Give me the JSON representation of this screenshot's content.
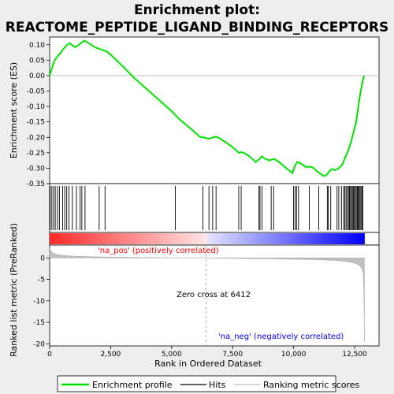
{
  "chart_data": {
    "type": "line",
    "title_line1": "Enrichment plot:",
    "title_line2": "REACTOME_PEPTIDE_LIGAND_BINDING_RECEPTORS",
    "top_panel": {
      "ylabel": "Enrichment score (ES)",
      "ylim": [
        -0.35,
        0.125
      ],
      "yticks": [
        0.1,
        0.05,
        0.0,
        -0.05,
        -0.1,
        -0.15,
        -0.2,
        -0.25,
        -0.3,
        -0.35
      ],
      "ytick_labels": [
        "0.10",
        "0.05",
        "0.00",
        "-0.05",
        "-0.10",
        "-0.15",
        "-0.20",
        "-0.25",
        "-0.30",
        "-0.35"
      ],
      "series": [
        {
          "name": "Enrichment profile",
          "color": "#00e000",
          "x": [
            0,
            60,
            120,
            180,
            250,
            320,
            400,
            470,
            540,
            610,
            690,
            760,
            830,
            900,
            980,
            1050,
            1120,
            1200,
            1280,
            1350,
            1420,
            1500,
            1600,
            1700,
            1800,
            1900,
            2000,
            2100,
            2200,
            2300,
            2500,
            3000,
            3500,
            4000,
            4500,
            5000,
            5150,
            5300,
            5600,
            5900,
            6150,
            6300,
            6400,
            6500,
            6600,
            6700,
            6800,
            6900,
            7200,
            7500,
            7750,
            7850,
            7950,
            8200,
            8450,
            8600,
            8700,
            8800,
            9000,
            9100,
            9200,
            9400,
            9700,
            9950,
            10050,
            10150,
            10300,
            10500,
            10650,
            10800,
            10950,
            11100,
            11250,
            11350,
            11450,
            11550,
            11700,
            11800,
            11900,
            12000,
            12050,
            12100,
            12150,
            12200,
            12250,
            12300,
            12350,
            12400,
            12450,
            12500,
            12550,
            12600,
            12650,
            12700,
            12750,
            12800,
            12850,
            12900
          ],
          "y": [
            0.0,
            0.015,
            0.03,
            0.045,
            0.055,
            0.062,
            0.07,
            0.075,
            0.085,
            0.09,
            0.098,
            0.102,
            0.105,
            0.1,
            0.095,
            0.092,
            0.096,
            0.1,
            0.105,
            0.11,
            0.113,
            0.11,
            0.105,
            0.1,
            0.095,
            0.09,
            0.088,
            0.085,
            0.082,
            0.08,
            0.068,
            0.03,
            -0.01,
            -0.045,
            -0.08,
            -0.115,
            -0.128,
            -0.14,
            -0.16,
            -0.18,
            -0.198,
            -0.2,
            -0.202,
            -0.205,
            -0.203,
            -0.2,
            -0.198,
            -0.2,
            -0.215,
            -0.232,
            -0.25,
            -0.248,
            -0.25,
            -0.262,
            -0.28,
            -0.27,
            -0.262,
            -0.268,
            -0.275,
            -0.272,
            -0.27,
            -0.28,
            -0.3,
            -0.316,
            -0.292,
            -0.28,
            -0.285,
            -0.296,
            -0.295,
            -0.298,
            -0.31,
            -0.318,
            -0.326,
            -0.322,
            -0.312,
            -0.303,
            -0.306,
            -0.303,
            -0.296,
            -0.288,
            -0.278,
            -0.268,
            -0.258,
            -0.25,
            -0.24,
            -0.228,
            -0.216,
            -0.2,
            -0.185,
            -0.17,
            -0.155,
            -0.13,
            -0.1,
            -0.075,
            -0.05,
            -0.03,
            -0.01,
            0.0
          ]
        }
      ],
      "hits": [
        20,
        90,
        160,
        230,
        320,
        400,
        530,
        620,
        700,
        790,
        930,
        1100,
        1250,
        1320,
        1450,
        2030,
        2270,
        5150,
        6280,
        6530,
        6680,
        6820,
        7750,
        7850,
        8580,
        8620,
        8700,
        9080,
        9180,
        10000,
        10060,
        10120,
        10200,
        10640,
        11030,
        11380,
        11420,
        11520,
        11780,
        11850,
        11960,
        12050,
        12100,
        12150,
        12200,
        12250,
        12290,
        12330,
        12370,
        12410,
        12450,
        12490,
        12530,
        12570,
        12610,
        12650,
        12680,
        12720,
        12760,
        12800,
        12840
      ]
    },
    "ranked_panel": {
      "ylabel": "Ranked list metric (PreRanked)",
      "ylim": [
        -20.5,
        3
      ],
      "yticks": [
        0,
        -5,
        -10,
        -15,
        -20
      ],
      "ytick_labels": [
        "0",
        "-5",
        "-10",
        "-15",
        "-20"
      ],
      "xlabel": "Rank in Ordered Dataset",
      "xlim": [
        0,
        13500
      ],
      "xticks": [
        0,
        2500,
        5000,
        7500,
        10000,
        12500
      ],
      "xtick_labels": [
        "0",
        "2,500",
        "5,000",
        "7,500",
        "10,000",
        "12,500"
      ],
      "metric_x": [
        0,
        50,
        150,
        300,
        600,
        1000,
        2000,
        3000,
        4000,
        5000,
        6000,
        6412,
        7000,
        8000,
        9000,
        10000,
        11000,
        11800,
        12200,
        12500,
        12700,
        12800,
        12850,
        12880,
        12900
      ],
      "metric_y": [
        2.4,
        1.6,
        1.1,
        0.8,
        0.55,
        0.4,
        0.25,
        0.15,
        0.08,
        0.04,
        0.01,
        0.0,
        -0.05,
        -0.12,
        -0.2,
        -0.3,
        -0.42,
        -0.6,
        -0.85,
        -1.2,
        -1.7,
        -2.5,
        -3.5,
        -8.0,
        -19.5
      ],
      "zero_cross_rank": 6412,
      "zero_cross_label": "Zero cross at 6412",
      "pos_label": "'na_pos' (positively correlated)",
      "neg_label": "'na_neg' (negatively correlated)",
      "pos_color": "#ff0000",
      "neg_color": "#0000ff"
    },
    "legend": {
      "items": [
        {
          "label": "Enrichment profile",
          "color": "#00e000"
        },
        {
          "label": "Hits",
          "color": "#000000"
        },
        {
          "label": "Ranking metric scores",
          "color": "#c0c0c0"
        }
      ]
    }
  }
}
